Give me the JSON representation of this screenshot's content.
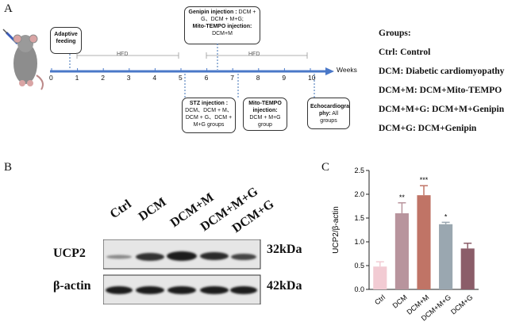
{
  "panelA": {
    "letter": "A",
    "adaptive": "Adaptive feeding",
    "genipin_title": "Genipin injection :",
    "genipin_body": "DCM + G、DCM + M+G;",
    "mito_title1": "Mito-TEMPO injection:",
    "mito_body1": "DCM+M",
    "hfd1": "HFD",
    "hfd2": "HFD",
    "weeks_label": "Weeks",
    "ticks": [
      "0",
      "1",
      "2",
      "3",
      "4",
      "5",
      "6",
      "7",
      "8",
      "9",
      "10"
    ],
    "stz_title": "STZ injection :",
    "stz_body": "DCM、DCM + M、DCM + G、DCM + M+G groups",
    "mito_title2": "Mito-TEMPO injection:",
    "mito_body2": "DCM + M+G group",
    "echo_title": "Echocardiogra phy:",
    "echo_body": "All groups",
    "groups_title": "Groups:",
    "groups": [
      "Ctrl: Control",
      "DCM: Diabetic cardiomyopathy",
      "DCM+M: DCM+Mito-TEMPO",
      "DCM+M+G: DCM+M+Genipin",
      "DCM+G: DCM+Genipin"
    ]
  },
  "panelB": {
    "letter": "B",
    "lanes": [
      "Ctrl",
      "DCM",
      "DCM+M",
      "DCM+M+G",
      "DCM+G"
    ],
    "rows": [
      {
        "protein": "UCP2",
        "kda": "32kDa"
      },
      {
        "protein": "β-actin",
        "kda": "42kDa"
      }
    ]
  },
  "panelC": {
    "letter": "C",
    "colors": [
      "#f2cbd3",
      "#b8949d",
      "#c07466",
      "#9aa7b0",
      "#8b5d69"
    ],
    "chart_data": {
      "type": "bar",
      "categories": [
        "Ctrl",
        "DCM",
        "DCM+M",
        "DCM+M+G",
        "DCM+G"
      ],
      "values": [
        0.48,
        1.6,
        1.98,
        1.37,
        0.86
      ],
      "errors": [
        0.1,
        0.22,
        0.2,
        0.04,
        0.11
      ],
      "significance": [
        "",
        "**",
        "***",
        "*",
        ""
      ],
      "ylabel": "UCP2/β-actin",
      "ylim": [
        0,
        2.5
      ],
      "yticks": [
        "0.0",
        "0.5",
        "1.0",
        "1.5",
        "2.0",
        "2.5"
      ]
    }
  }
}
